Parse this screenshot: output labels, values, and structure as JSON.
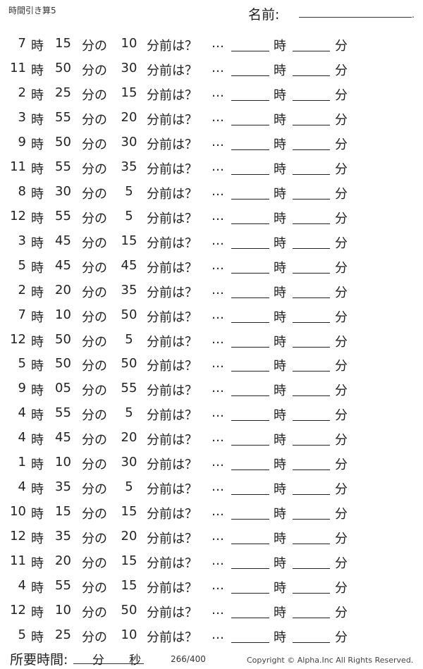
{
  "header": {
    "title": "時間引き算5",
    "name_label": "名前:",
    "name_end": "."
  },
  "labels": {
    "hour": "時",
    "minute_of": "分の",
    "minutes_before": "分前は？",
    "ellipsis": "…",
    "answer_hour": "時",
    "answer_minute": "分"
  },
  "problems": [
    {
      "hour": "7",
      "minute": "15",
      "subtract": "10"
    },
    {
      "hour": "11",
      "minute": "50",
      "subtract": "30"
    },
    {
      "hour": "2",
      "minute": "25",
      "subtract": "15"
    },
    {
      "hour": "3",
      "minute": "55",
      "subtract": "20"
    },
    {
      "hour": "9",
      "minute": "50",
      "subtract": "30"
    },
    {
      "hour": "11",
      "minute": "55",
      "subtract": "35"
    },
    {
      "hour": "8",
      "minute": "30",
      "subtract": "5"
    },
    {
      "hour": "12",
      "minute": "55",
      "subtract": "5"
    },
    {
      "hour": "3",
      "minute": "45",
      "subtract": "15"
    },
    {
      "hour": "5",
      "minute": "45",
      "subtract": "45"
    },
    {
      "hour": "2",
      "minute": "20",
      "subtract": "35"
    },
    {
      "hour": "7",
      "minute": "10",
      "subtract": "50"
    },
    {
      "hour": "12",
      "minute": "50",
      "subtract": "5"
    },
    {
      "hour": "5",
      "minute": "50",
      "subtract": "50"
    },
    {
      "hour": "9",
      "minute": "05",
      "subtract": "55"
    },
    {
      "hour": "4",
      "minute": "55",
      "subtract": "5"
    },
    {
      "hour": "4",
      "minute": "45",
      "subtract": "20"
    },
    {
      "hour": "1",
      "minute": "10",
      "subtract": "30"
    },
    {
      "hour": "4",
      "minute": "35",
      "subtract": "5"
    },
    {
      "hour": "10",
      "minute": "15",
      "subtract": "15"
    },
    {
      "hour": "12",
      "minute": "35",
      "subtract": "20"
    },
    {
      "hour": "11",
      "minute": "20",
      "subtract": "15"
    },
    {
      "hour": "4",
      "minute": "55",
      "subtract": "15"
    },
    {
      "hour": "12",
      "minute": "10",
      "subtract": "50"
    },
    {
      "hour": "5",
      "minute": "25",
      "subtract": "10"
    }
  ],
  "footer": {
    "time_label": "所要時間:",
    "minutes": "分",
    "seconds": "秒",
    "page": "266/400",
    "copyright": "Copyright ©  Alpha.Inc All Rights Reserved."
  }
}
